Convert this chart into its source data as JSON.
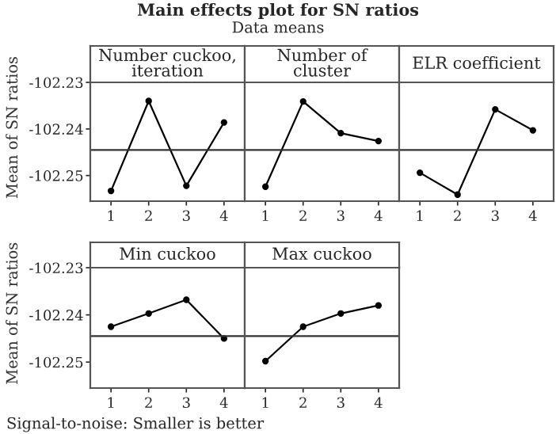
{
  "chart_data": [
    {
      "type": "line",
      "title": "Number cuckoo, iteration",
      "ylabel": "Mean of SN ratios",
      "categories": [
        "1",
        "2",
        "3",
        "4"
      ],
      "values": [
        -102.2533,
        -102.234,
        -102.2522,
        -102.2386
      ],
      "color": "#000000",
      "marker": "circle",
      "ylim": [
        -102.2555,
        -102.23
      ],
      "yticks": [
        -102.25,
        -102.24,
        -102.23
      ],
      "ref_lines": [
        {
          "axis": "y",
          "value": -102.2445
        }
      ],
      "grid": false,
      "legend": false,
      "annotations": [
        "Main effects plot for SN ratios",
        "Data means",
        "Signal-to-noise: Smaller is better"
      ]
    },
    {
      "type": "line",
      "title": "Number of cluster",
      "categories": [
        "1",
        "2",
        "3",
        "4"
      ],
      "values": [
        -102.2524,
        -102.2341,
        -102.2409,
        -102.2426
      ],
      "color": "#000000",
      "marker": "circle",
      "ylim": [
        -102.2555,
        -102.23
      ],
      "yticks": [
        -102.25,
        -102.24,
        -102.23
      ],
      "ref_lines": [
        {
          "axis": "y",
          "value": -102.2445
        }
      ],
      "grid": false,
      "legend": false,
      "tick_labels": "x"
    },
    {
      "type": "line",
      "title": "ELR coefficient",
      "categories": [
        "1",
        "2",
        "3",
        "4"
      ],
      "values": [
        -102.2494,
        -102.2541,
        -102.2358,
        -102.2403
      ],
      "color": "#000000",
      "marker": "circle",
      "ylim": [
        -102.2555,
        -102.23
      ],
      "yticks": [
        -102.25,
        -102.24,
        -102.23
      ],
      "ref_lines": [
        {
          "axis": "y",
          "value": -102.2445
        }
      ],
      "grid": false,
      "legend": false,
      "tick_labels": "x"
    },
    {
      "type": "line",
      "title": "Min cuckoo",
      "ylabel": "Mean of SN ratios",
      "categories": [
        "1",
        "2",
        "3",
        "4"
      ],
      "values": [
        -102.2425,
        -102.2397,
        -102.2368,
        -102.245
      ],
      "color": "#000000",
      "marker": "circle",
      "ylim": [
        -102.2555,
        -102.23
      ],
      "yticks": [
        -102.25,
        -102.24,
        -102.23
      ],
      "ref_lines": [
        {
          "axis": "y",
          "value": -102.2445
        }
      ],
      "grid": false,
      "legend": false
    },
    {
      "type": "line",
      "title": "Max cuckoo",
      "categories": [
        "1",
        "2",
        "3",
        "4"
      ],
      "values": [
        -102.2498,
        -102.2425,
        -102.2397,
        -102.238
      ],
      "color": "#000000",
      "marker": "circle",
      "ylim": [
        -102.2555,
        -102.23
      ],
      "yticks": [
        -102.25,
        -102.24,
        -102.23
      ],
      "ref_lines": [
        {
          "axis": "y",
          "value": -102.2445
        }
      ],
      "grid": false,
      "legend": false,
      "tick_labels": "x"
    }
  ]
}
